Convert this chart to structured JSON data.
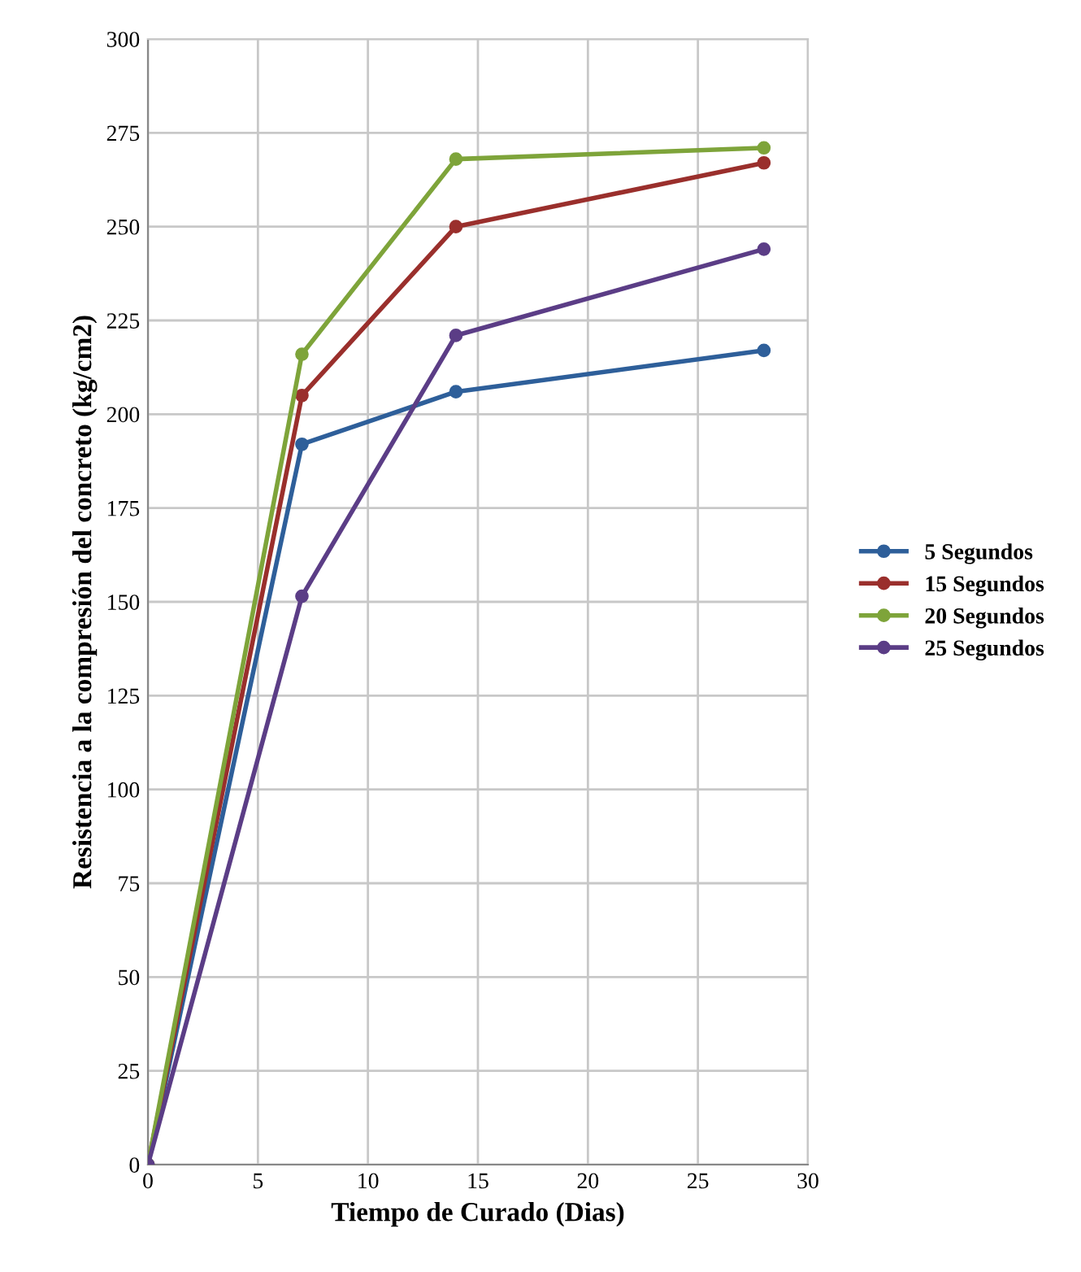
{
  "chart_data": {
    "type": "line",
    "xlabel": "Tiempo de Curado (Dias)",
    "ylabel": "Resistencia a la compresión del concreto (kg/cm2)",
    "x": [
      0,
      7,
      14,
      28
    ],
    "series": [
      {
        "name": "5 Segundos",
        "color": "#2e5f9a",
        "values": [
          0,
          192,
          206,
          217
        ]
      },
      {
        "name": "15 Segundos",
        "color": "#9a2f2c",
        "values": [
          0,
          205,
          250,
          267
        ]
      },
      {
        "name": "20 Segundos",
        "color": "#7ea43a",
        "values": [
          0,
          216,
          268,
          271
        ]
      },
      {
        "name": "25 Segundos",
        "color": "#5b3d86",
        "values": [
          0,
          151.5,
          221,
          244
        ]
      }
    ],
    "xlim": [
      0,
      30
    ],
    "xticks": [
      0,
      5,
      10,
      15,
      20,
      25,
      30
    ],
    "ylim": [
      0,
      300
    ],
    "yticks": [
      0,
      25,
      50,
      75,
      100,
      125,
      150,
      175,
      200,
      225,
      250,
      275,
      300
    ],
    "grid": true,
    "legend": "right",
    "marker": "circle",
    "line_style": "solid"
  }
}
